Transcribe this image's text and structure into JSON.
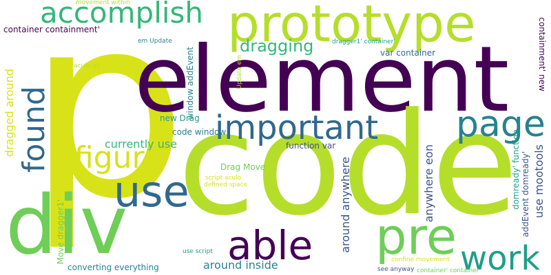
{
  "colors": {
    "purple": "#440154",
    "indigo": "#3b528b",
    "blue": "#31688e",
    "teal": "#26828e",
    "seagreen": "#1f9e89",
    "green": "#35b779",
    "lightgreen": "#6ece58",
    "lime": "#b5de2b",
    "yellow": "#d8e219",
    "gold": "#fde725"
  },
  "words": [
    {
      "id": "p",
      "text": "p"
    },
    {
      "id": "element",
      "text": "element"
    },
    {
      "id": "code",
      "text": "code"
    },
    {
      "id": "prototype",
      "text": "prototype"
    },
    {
      "id": "accomplish",
      "text": "accomplish"
    },
    {
      "id": "div",
      "text": "div"
    },
    {
      "id": "important",
      "text": "important"
    },
    {
      "id": "page",
      "text": "page"
    },
    {
      "id": "use",
      "text": "use"
    },
    {
      "id": "able",
      "text": "able"
    },
    {
      "id": "pre",
      "text": "pre"
    },
    {
      "id": "work",
      "text": "work"
    },
    {
      "id": "found",
      "text": "found"
    },
    {
      "id": "figure",
      "text": "figure"
    },
    {
      "id": "dragging",
      "text": "dragging"
    },
    {
      "id": "currently-use",
      "text": "currently use"
    },
    {
      "id": "dragged-around",
      "text": "dragged around"
    },
    {
      "id": "around-anywhere",
      "text": "around anywhere"
    },
    {
      "id": "anywhere-eon",
      "text": "anywhere eon"
    },
    {
      "id": "use-mootools",
      "text": "use mootools"
    },
    {
      "id": "around-inside",
      "text": "around inside"
    },
    {
      "id": "converting-everything",
      "text": "converting everything"
    },
    {
      "id": "container-containment",
      "text": "container containment'"
    },
    {
      "id": "containment-new",
      "text": "containment' new"
    },
    {
      "id": "var-container",
      "text": "var container"
    },
    {
      "id": "window-addevent",
      "text": "window addEvent"
    },
    {
      "id": "code-window",
      "text": "code window"
    },
    {
      "id": "new-drag",
      "text": "new Drag"
    },
    {
      "id": "drag-move",
      "text": "Drag Move"
    },
    {
      "id": "function-var",
      "text": "function var"
    },
    {
      "id": "domready-function",
      "text": "domready' function"
    },
    {
      "id": "addevent-domready",
      "text": "addEvent domready'"
    },
    {
      "id": "move-dragger",
      "text": "Move dragger1'"
    },
    {
      "id": "movement-within",
      "text": "movement within"
    },
    {
      "id": "em-update",
      "text": "em Update"
    },
    {
      "id": "dragger-container",
      "text": "dragger1' container'"
    },
    {
      "id": "aculo-us",
      "text": "aculo us"
    },
    {
      "id": "update-em",
      "text": "Update em"
    },
    {
      "id": "script-aculo",
      "text": "script aculo"
    },
    {
      "id": "defined-space",
      "text": "defined space"
    },
    {
      "id": "use-script",
      "text": "use script"
    },
    {
      "id": "confine-movement",
      "text": "confine movement"
    },
    {
      "id": "see-anyway",
      "text": "see anyway"
    },
    {
      "id": "container-container",
      "text": "container' container"
    }
  ]
}
